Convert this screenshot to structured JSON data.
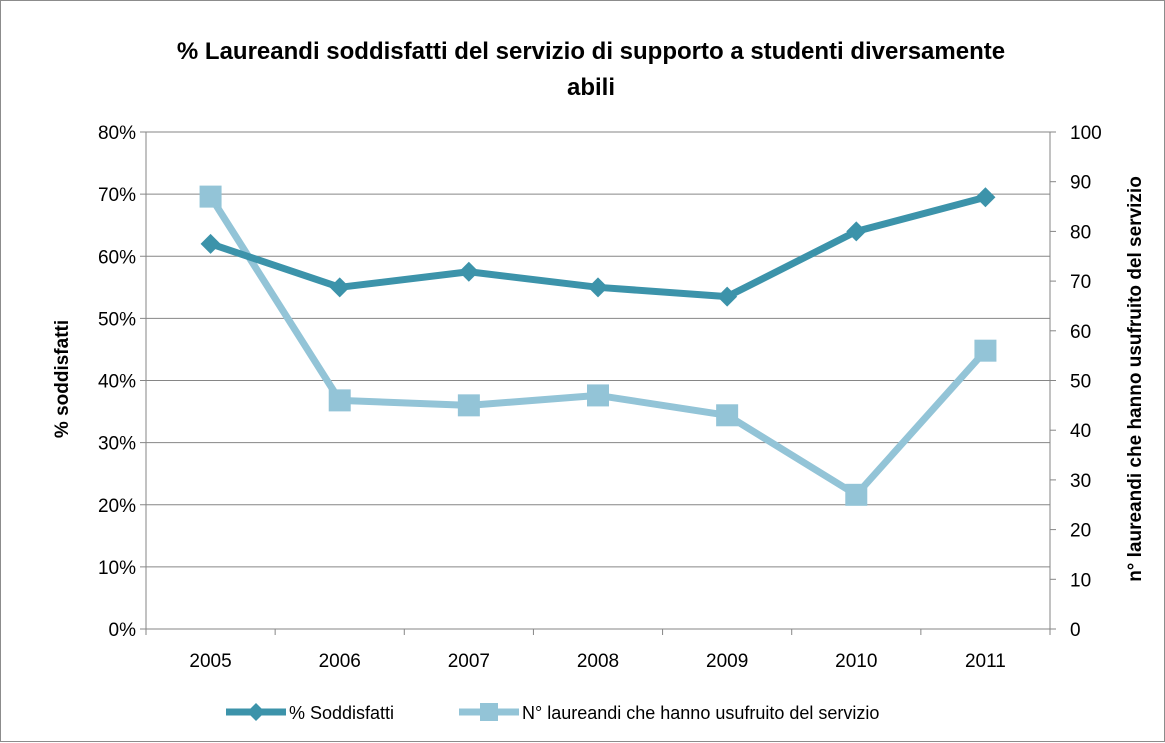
{
  "chart_data": {
    "type": "line",
    "title_lines": [
      "% Laureandi soddisfatti del servizio di supporto a studenti diversamente",
      "abili"
    ],
    "categories": [
      "2005",
      "2006",
      "2007",
      "2008",
      "2009",
      "2010",
      "2011"
    ],
    "y_left": {
      "label": "% soddisfatti",
      "ticks": [
        "0%",
        "10%",
        "20%",
        "30%",
        "40%",
        "50%",
        "60%",
        "70%",
        "80%"
      ],
      "range": [
        0,
        80
      ]
    },
    "y_right": {
      "label": "n° laureandi che hanno usufruito del servizio",
      "ticks": [
        "0",
        "10",
        "20",
        "30",
        "40",
        "50",
        "60",
        "70",
        "80",
        "90",
        "100"
      ],
      "range": [
        0,
        100
      ]
    },
    "grid": true,
    "legend_position": "bottom",
    "series": [
      {
        "name": "% Soddisfatti",
        "axis": "left",
        "marker": "diamond",
        "color": "#3c93aa",
        "values": [
          62,
          55,
          57.5,
          55,
          53.5,
          64,
          69.5
        ]
      },
      {
        "name": "N° laureandi che hanno usufruito del servizio",
        "axis": "right",
        "marker": "square",
        "color": "#93c4d7",
        "values": [
          87,
          46,
          45,
          47,
          43,
          27,
          56
        ]
      }
    ]
  }
}
